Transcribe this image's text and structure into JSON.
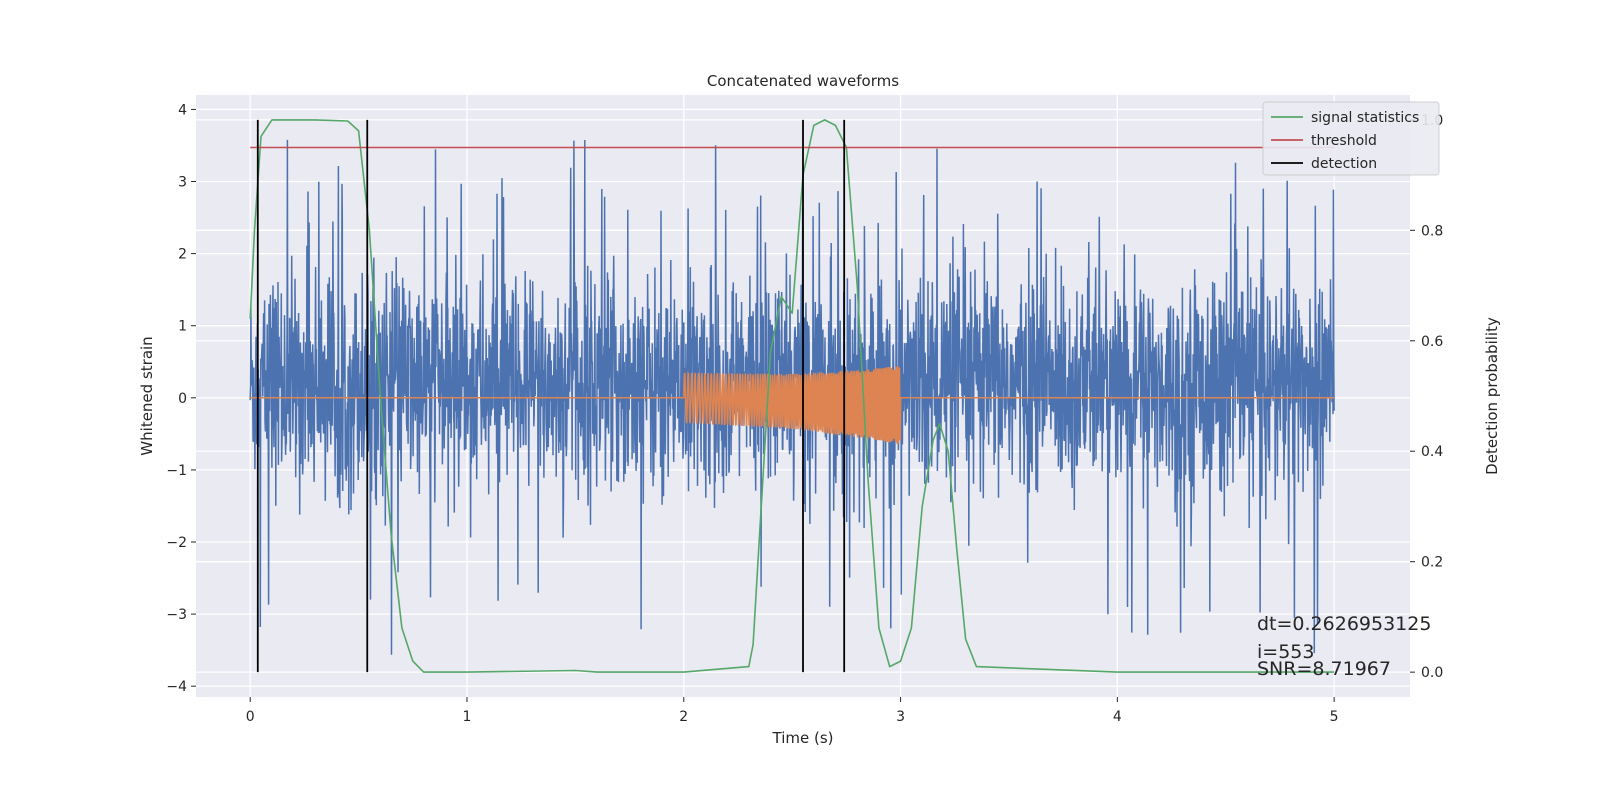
{
  "chart_data": {
    "type": "line",
    "title": "Concatenated waveforms",
    "xlabel": "Time (s)",
    "ylabel_left": "Whitened strain",
    "ylabel_right": "Detection probability",
    "xlim": [
      -0.25,
      5.35
    ],
    "ylim_left": [
      -4.15,
      4.2
    ],
    "ylim_right": [
      -0.045,
      1.045
    ],
    "x_ticks": [
      0,
      1,
      2,
      3,
      4,
      5
    ],
    "x_tick_labels": [
      "0",
      "1",
      "2",
      "3",
      "4",
      "5"
    ],
    "y_left_ticks": [
      -4,
      -3,
      -2,
      -1,
      0,
      1,
      2,
      3,
      4
    ],
    "y_left_tick_labels": [
      "−4",
      "−3",
      "−2",
      "−1",
      "0",
      "1",
      "2",
      "3",
      "4"
    ],
    "y_right_ticks": [
      0.0,
      0.2,
      0.4,
      0.6,
      0.8,
      1.0
    ],
    "y_right_tick_labels": [
      "0.0",
      "0.2",
      "0.4",
      "0.6",
      "0.8",
      "1.0"
    ],
    "grid": true,
    "legend_position": "top-right",
    "legend": [
      "signal statistics",
      "threshold",
      "detection"
    ],
    "series": [
      {
        "name": "",
        "axis": "left",
        "color": "#4c72b0",
        "kind": "noise",
        "x_range": [
          0,
          5
        ],
        "typical_range": [
          -1.7,
          2.4
        ],
        "extremes": [
          -3.8,
          3.8
        ]
      },
      {
        "name": "",
        "axis": "left",
        "color": "#dd8452",
        "kind": "chirp",
        "x": [
          0,
          2.0,
          2.5,
          2.9,
          3.0,
          3.0,
          5.0
        ],
        "envelope": [
          0,
          0.35,
          0.38,
          0.5,
          0.55,
          0,
          0
        ]
      },
      {
        "name": "signal statistics",
        "axis": "right",
        "color": "#55a868",
        "x": [
          0.0,
          0.02,
          0.05,
          0.1,
          0.2,
          0.3,
          0.45,
          0.5,
          0.55,
          0.6,
          0.65,
          0.7,
          0.75,
          0.8,
          1.0,
          1.5,
          1.6,
          2.0,
          2.3,
          2.32,
          2.35,
          2.4,
          2.45,
          2.5,
          2.55,
          2.6,
          2.65,
          2.7,
          2.75,
          2.8,
          2.85,
          2.9,
          2.95,
          3.0,
          3.05,
          3.1,
          3.15,
          3.18,
          3.22,
          3.26,
          3.3,
          3.35,
          4.0,
          5.0
        ],
        "y": [
          0.64,
          0.8,
          0.97,
          1.0,
          1.0,
          1.0,
          0.998,
          0.98,
          0.8,
          0.5,
          0.25,
          0.08,
          0.02,
          0.0,
          0.0,
          0.003,
          0.0,
          0.0,
          0.01,
          0.05,
          0.25,
          0.58,
          0.68,
          0.65,
          0.9,
          0.99,
          1.0,
          0.99,
          0.95,
          0.7,
          0.35,
          0.08,
          0.01,
          0.02,
          0.08,
          0.3,
          0.42,
          0.45,
          0.4,
          0.22,
          0.06,
          0.01,
          0.0,
          0.0
        ]
      },
      {
        "name": "threshold",
        "axis": "right",
        "color": "#c44e52",
        "x": [
          0,
          5
        ],
        "y": [
          0.95,
          0.95
        ]
      }
    ],
    "detections": {
      "name": "detection",
      "color": "#000000",
      "x": [
        0.035,
        0.54,
        2.55,
        2.74
      ],
      "y_range": [
        0,
        1
      ]
    },
    "annotations": [
      "dt=0.2626953125",
      " i=553",
      "SNR=8.71967"
    ]
  }
}
